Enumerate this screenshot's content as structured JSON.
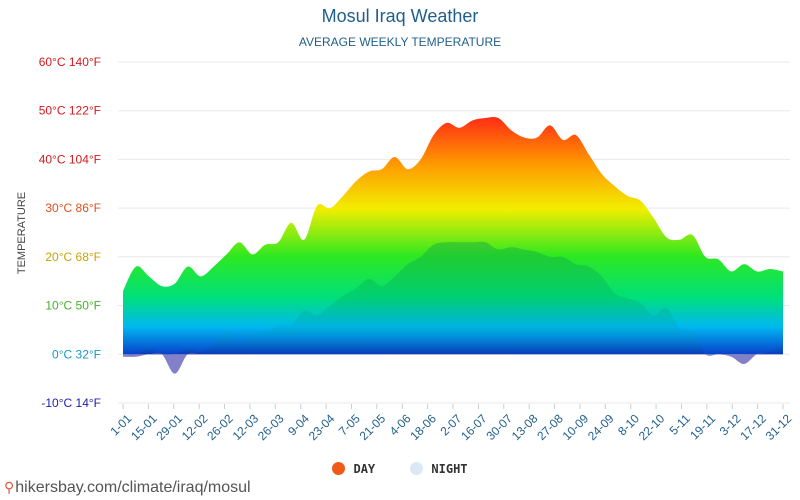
{
  "chart_data": {
    "type": "area",
    "title": "Mosul Iraq Weather",
    "subtitle": "AVERAGE WEEKLY TEMPERATURE",
    "ylabel": "TEMPERATURE",
    "ylim": [
      -10,
      60
    ],
    "yticks": [
      {
        "value": 60,
        "label": "60°C 140°F",
        "color": "#d7191c"
      },
      {
        "value": 50,
        "label": "50°C 122°F",
        "color": "#d7191c"
      },
      {
        "value": 40,
        "label": "40°C 104°F",
        "color": "#d7191c"
      },
      {
        "value": 30,
        "label": "30°C 86°F",
        "color": "#e0501b"
      },
      {
        "value": 20,
        "label": "20°C 68°F",
        "color": "#c9a400"
      },
      {
        "value": 10,
        "label": "10°C 50°F",
        "color": "#46b02a"
      },
      {
        "value": 0,
        "label": "0°C 32°F",
        "color": "#1797c9"
      },
      {
        "value": -10,
        "label": "-10°C 14°F",
        "color": "#1d1db4"
      }
    ],
    "xticks": [
      "1-01",
      "15-01",
      "29-01",
      "12-02",
      "26-02",
      "12-03",
      "26-03",
      "9-04",
      "23-04",
      "7-05",
      "21-05",
      "4-06",
      "18-06",
      "2-07",
      "16-07",
      "30-07",
      "13-08",
      "27-08",
      "10-09",
      "24-09",
      "8-10",
      "22-10",
      "5-11",
      "19-11",
      "3-12",
      "17-12",
      "31-12"
    ],
    "series": [
      {
        "name": "DAY",
        "color": "#f05a18",
        "values": [
          13,
          18,
          16,
          14,
          14.5,
          18,
          16,
          18,
          20.5,
          23,
          20.5,
          22.5,
          23,
          27,
          23.5,
          30.5,
          30,
          32.5,
          35.5,
          37.5,
          38,
          40.5,
          38,
          40,
          45,
          47.5,
          46.5,
          48,
          48.5,
          48.5,
          46,
          44.5,
          44.5,
          47,
          44,
          45,
          41,
          37,
          34.5,
          32.5,
          31.5,
          28,
          24,
          23.5,
          24.5,
          20,
          19.5,
          17,
          18.5,
          17,
          17.5,
          17
        ]
      },
      {
        "name": "NIGHT",
        "color": "#dde8f5",
        "values": [
          -0.5,
          -0.5,
          1,
          0,
          -4,
          1,
          0.5,
          2,
          4.5,
          3,
          4,
          4.5,
          6,
          6,
          9,
          8,
          10,
          12,
          13.5,
          15.5,
          14,
          16,
          18.5,
          20,
          22.5,
          23,
          23,
          23,
          23,
          21.5,
          22,
          21.5,
          21,
          20,
          20,
          18.5,
          18,
          16,
          12.5,
          11.5,
          10.5,
          8,
          9.5,
          5.5,
          4.5,
          0,
          0,
          -0.5,
          -2,
          0,
          0.5,
          2
        ]
      }
    ]
  },
  "legend": {
    "day": "DAY",
    "night": "NIGHT"
  },
  "source": "hikersbay.com/climate/iraq/mosul"
}
